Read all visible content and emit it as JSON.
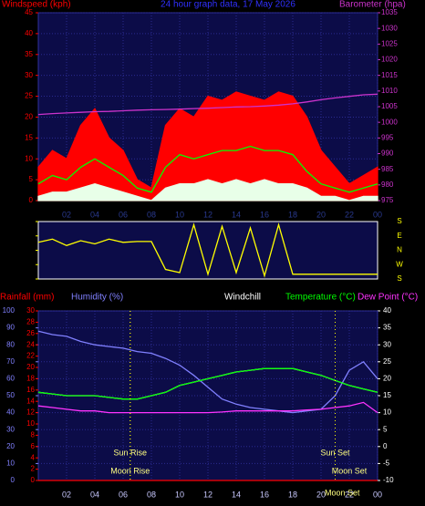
{
  "chart_data": [
    {
      "type": "area",
      "title": "24 hour graph data, 17 May 2026",
      "y_label": "Windspeed (kph)",
      "y2_label": "Barometer (hpa)",
      "x": [
        0,
        1,
        2,
        3,
        4,
        5,
        6,
        7,
        8,
        9,
        10,
        11,
        12,
        13,
        14,
        15,
        16,
        17,
        18,
        19,
        20,
        21,
        22,
        23,
        24
      ],
      "xlim": [
        0,
        24
      ],
      "xticks": [
        {
          "value": 2,
          "label": "02"
        },
        {
          "value": 4,
          "label": "04"
        },
        {
          "value": 6,
          "label": "06"
        },
        {
          "value": 8,
          "label": "08"
        },
        10,
        12,
        14,
        16,
        18,
        20,
        22,
        {
          "value": 24,
          "label": "00"
        }
      ],
      "ylim": [
        0,
        45
      ],
      "yticks": [
        0,
        5,
        10,
        15,
        20,
        25,
        30,
        35,
        40,
        45
      ],
      "y2lim": [
        975,
        1035
      ],
      "y2ticks": [
        975,
        980,
        985,
        990,
        995,
        1000,
        1005,
        1010,
        1015,
        1020,
        1025,
        1030,
        1035
      ],
      "grid": true,
      "series": [
        {
          "style": "area",
          "color": "#ff0000",
          "values": [
            8,
            12,
            10,
            18,
            22,
            15,
            12,
            5,
            3,
            18,
            22,
            20,
            25,
            24,
            26,
            25,
            24,
            26,
            25,
            20,
            12,
            8,
            4,
            6,
            8
          ]
        },
        {
          "style": "area",
          "color": "#e8ffe8",
          "values": [
            1,
            2,
            2,
            3,
            4,
            3,
            2,
            1,
            0,
            3,
            4,
            4,
            5,
            4,
            5,
            4,
            5,
            4,
            4,
            3,
            1,
            1,
            0,
            1,
            1
          ]
        },
        {
          "style": "line",
          "color": "#00ff00",
          "values": [
            4,
            6,
            5,
            8,
            10,
            8,
            6,
            3,
            2,
            8,
            11,
            10,
            11,
            12,
            12,
            13,
            12,
            12,
            11,
            7,
            4,
            3,
            2,
            3,
            4
          ]
        },
        {
          "style": "line",
          "axis": "y2",
          "color": "#cc33cc",
          "values": [
            1002.5,
            1002.8,
            1003,
            1003.2,
            1003.4,
            1003.5,
            1003.7,
            1003.9,
            1004,
            1004.1,
            1004.2,
            1004.4,
            1004.5,
            1004.7,
            1004.9,
            1005,
            1005.2,
            1005.5,
            1005.9,
            1006.5,
            1007.2,
            1007.8,
            1008.3,
            1008.8,
            1009
          ]
        }
      ]
    },
    {
      "type": "line",
      "x": [
        0,
        1,
        2,
        3,
        4,
        5,
        6,
        7,
        8,
        9,
        10,
        11,
        12,
        13,
        14,
        15,
        16,
        17,
        18,
        19,
        20,
        21,
        22,
        23,
        24
      ],
      "xlim": [
        0,
        24
      ],
      "ylim": [
        0,
        360
      ],
      "yticks": [
        {
          "value": 360,
          "label": "S"
        },
        {
          "value": 270,
          "label": "E"
        },
        {
          "value": 180,
          "label": "N"
        },
        {
          "value": 90,
          "label": "W"
        },
        {
          "value": 0,
          "label": "S"
        }
      ],
      "series": [
        {
          "style": "line",
          "color": "#ffff00",
          "values": [
            230,
            250,
            210,
            240,
            220,
            250,
            230,
            235,
            235,
            60,
            40,
            340,
            30,
            330,
            40,
            320,
            20,
            340,
            30,
            30,
            30,
            30,
            30,
            30,
            30
          ]
        }
      ]
    },
    {
      "type": "line",
      "x": [
        0,
        1,
        2,
        3,
        4,
        5,
        6,
        7,
        8,
        9,
        10,
        11,
        12,
        13,
        14,
        15,
        16,
        17,
        18,
        19,
        20,
        21,
        22,
        23,
        24
      ],
      "xlim": [
        0,
        24
      ],
      "xticks": [
        {
          "value": 2,
          "label": "02"
        },
        {
          "value": 4,
          "label": "04"
        },
        {
          "value": 6,
          "label": "06"
        },
        {
          "value": 8,
          "label": "08"
        },
        10,
        12,
        14,
        16,
        18,
        20,
        22,
        {
          "value": 24,
          "label": "00"
        }
      ],
      "ylim": [
        0,
        100
      ],
      "yticks": [
        0,
        10,
        20,
        30,
        40,
        50,
        60,
        70,
        80,
        90,
        100
      ],
      "y3lim": [
        0,
        30
      ],
      "y3ticks": [
        0,
        2,
        4,
        6,
        8,
        10,
        12,
        14,
        16,
        18,
        20,
        22,
        24,
        26,
        28,
        30
      ],
      "y2lim": [
        -10,
        40
      ],
      "y2ticks": [
        -10,
        -5,
        0,
        5,
        10,
        15,
        20,
        25,
        30,
        35,
        40
      ],
      "grid": true,
      "series": [
        {
          "name": "Rainfall (mm)",
          "axis": "y3",
          "color": "#ff0000",
          "values": [
            0,
            0,
            0,
            0,
            0,
            0,
            0,
            0,
            0,
            0,
            0,
            0,
            0,
            0,
            0,
            0,
            0,
            0,
            0,
            0,
            0,
            0,
            0,
            0,
            0
          ]
        },
        {
          "name": "Humidity (%)",
          "color": "#8080ff",
          "values": [
            88,
            86,
            85,
            82,
            80,
            79,
            78,
            76,
            75,
            72,
            68,
            62,
            55,
            48,
            45,
            43,
            42,
            41,
            40,
            41,
            42,
            50,
            65,
            70,
            60
          ]
        },
        {
          "name": "Windchill",
          "axis": "y2",
          "color": "#ffffff",
          "values": [
            16,
            15.5,
            15,
            15,
            15,
            14.5,
            14,
            14,
            15,
            16,
            18,
            19,
            20,
            21,
            22,
            22.5,
            23,
            23,
            23,
            22,
            21,
            19.5,
            18,
            17,
            16
          ]
        },
        {
          "name": "Temperature (°C)",
          "axis": "y2",
          "color": "#00ff00",
          "values": [
            16,
            15.5,
            15,
            15,
            15,
            14.5,
            14,
            14,
            15,
            16,
            18,
            19,
            20,
            21,
            22,
            22.5,
            23,
            23,
            23,
            22,
            21,
            19.5,
            18,
            17,
            16
          ]
        },
        {
          "name": "Dew Point (°C)",
          "axis": "y2",
          "color": "#ff33ff",
          "values": [
            12,
            11.5,
            11,
            10.5,
            10.5,
            10,
            10,
            10,
            10,
            10,
            10,
            10,
            10,
            10.2,
            10.5,
            10.5,
            10.5,
            10.5,
            10.5,
            10.8,
            11,
            11.5,
            12,
            13,
            10
          ]
        }
      ],
      "annotations": [
        {
          "text": "Sun Rise",
          "x": 6.5
        },
        {
          "text": "Moon Rise",
          "x": 6.5
        },
        {
          "text": "Sun Set",
          "x": 21
        },
        {
          "text": "Moon Set",
          "x": 22
        },
        {
          "text": "Moon Set",
          "x": 21.5
        }
      ]
    }
  ]
}
